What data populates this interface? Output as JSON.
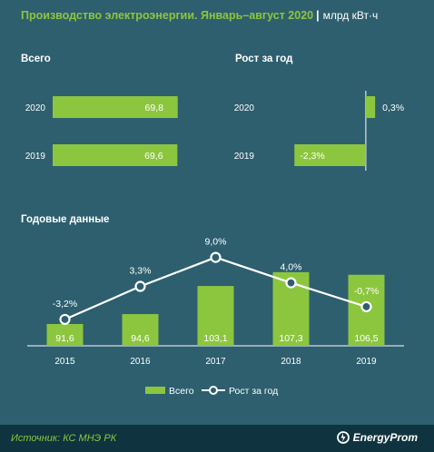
{
  "title": "Производство электроэнергии. Январь–август 2020",
  "unit": "млрд кВт·ч",
  "colors": {
    "bar": "#8cc63f",
    "line": "#ffffff",
    "background": "#2d5f6f",
    "footer": "#0f3440"
  },
  "total_panel": {
    "heading": "Всего"
  },
  "growth_panel": {
    "heading": "Рост за год"
  },
  "annual_panel": {
    "heading": "Годовые данные"
  },
  "legend": {
    "bars": "Всего",
    "line": "Рост за год"
  },
  "footer": {
    "source": "Источник: КС МНЭ РК",
    "brand": "EnergyProm"
  },
  "chart_data": [
    {
      "type": "bar",
      "orientation": "horizontal",
      "categories": [
        "2020",
        "2019"
      ],
      "values": [
        69.8,
        69.6
      ],
      "labels": [
        "69,8",
        "69,6"
      ],
      "title": "Всего",
      "xlim": [
        0,
        75
      ]
    },
    {
      "type": "bar",
      "orientation": "horizontal",
      "categories": [
        "2020",
        "2019"
      ],
      "values": [
        0.3,
        -2.3
      ],
      "labels": [
        "0,3%",
        "-2,3%"
      ],
      "title": "Рост за год",
      "xlim": [
        -2.6,
        0.5
      ]
    },
    {
      "type": "bar",
      "title": "Годовые данные",
      "categories": [
        "2015",
        "2016",
        "2017",
        "2018",
        "2019"
      ],
      "series": [
        {
          "name": "Всего",
          "type": "bar",
          "values": [
            91.6,
            94.6,
            103.1,
            107.3,
            106.5
          ],
          "labels": [
            "91,6",
            "94,6",
            "103,1",
            "107,3",
            "106,5"
          ]
        },
        {
          "name": "Рост за год",
          "type": "line",
          "values": [
            -3.2,
            3.3,
            9.0,
            4.0,
            -0.7
          ],
          "labels": [
            "-3,2%",
            "3,3%",
            "9,0%",
            "4,0%",
            "-0,7%"
          ]
        }
      ],
      "legend": "bottom-center"
    }
  ]
}
